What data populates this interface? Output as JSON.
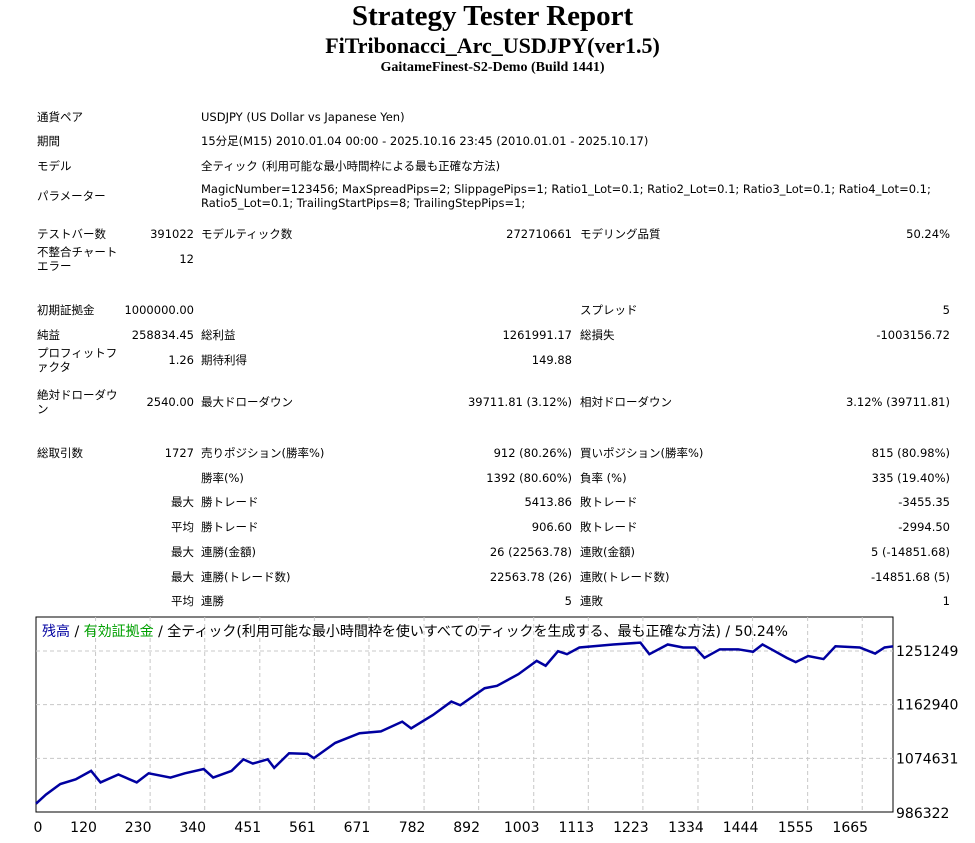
{
  "header": {
    "title": "Strategy Tester Report",
    "expert": "FiTribonacci_Arc_USDJPY(ver1.5)",
    "server": "GaitameFinest-S2-Demo (Build 1441)"
  },
  "info": {
    "symbol_label": "通貨ペア",
    "symbol": "USDJPY (US Dollar vs Japanese Yen)",
    "period_label": "期間",
    "period": "15分足(M15) 2010.01.04 00:00 - 2025.10.16 23:45 (2010.01.01 - 2025.10.17)",
    "model_label": "モデル",
    "model": "全ティック (利用可能な最小時間枠による最も正確な方法)",
    "params_label": "パラメーター",
    "params_line1": "MagicNumber=123456; MaxSpreadPips=2; SlippagePips=1; Ratio1_Lot=0.1; Ratio2_Lot=0.1; Ratio3_Lot=0.1; Ratio4_Lot=0.1;",
    "params_line2": "Ratio5_Lot=0.1; TrailingStartPips=8; TrailingStepPips=1;"
  },
  "stats": [
    {
      "y": 227,
      "c": [
        [
          "テストバー数",
          "391022"
        ],
        [
          "モデルティック数",
          "272710661"
        ],
        [
          "モデリング品質",
          "50.24%"
        ]
      ]
    },
    {
      "y": 252,
      "c": [
        [
          "不整合チャート\nエラー",
          "12"
        ]
      ]
    },
    {
      "y": 303,
      "c": [
        [
          "初期証拠金",
          "1000000.00"
        ],
        [
          "",
          ""
        ],
        [
          "スプレッド",
          "5"
        ]
      ]
    },
    {
      "y": 328,
      "c": [
        [
          "純益",
          "258834.45"
        ],
        [
          "総利益",
          "1261991.17"
        ],
        [
          "総損失",
          "-1003156.72"
        ]
      ]
    },
    {
      "y": 353,
      "c": [
        [
          "プロフィットフ\nァクタ",
          "1.26"
        ],
        [
          "期待利得",
          "149.88"
        ]
      ]
    },
    {
      "y": 395,
      "c": [
        [
          "絶対ドローダウ\nン",
          "2540.00"
        ],
        [
          "最大ドローダウン",
          "39711.81 (3.12%)"
        ],
        [
          "相対ドローダウン",
          "3.12% (39711.81)"
        ]
      ]
    },
    {
      "y": 446,
      "c": [
        [
          "総取引数",
          "1727"
        ],
        [
          "売りポジション(勝率%)",
          "912 (80.26%)"
        ],
        [
          "買いポジション(勝率%)",
          "815 (80.98%)"
        ]
      ]
    },
    {
      "y": 471,
      "c": [
        [
          "",
          ""
        ],
        [
          "勝率(%)",
          "1392 (80.60%)"
        ],
        [
          "負率 (%)",
          "335 (19.40%)"
        ]
      ]
    },
    {
      "y": 495,
      "c": [
        [
          "",
          "最大"
        ],
        [
          "勝トレード",
          "5413.86"
        ],
        [
          "敗トレード",
          "-3455.35"
        ]
      ]
    },
    {
      "y": 520,
      "c": [
        [
          "",
          "平均"
        ],
        [
          "勝トレード",
          "906.60"
        ],
        [
          "敗トレード",
          "-2994.50"
        ]
      ]
    },
    {
      "y": 545,
      "c": [
        [
          "",
          "最大"
        ],
        [
          "連勝(金額)",
          "26 (22563.78)"
        ],
        [
          "連敗(金額)",
          "5 (-14851.68)"
        ]
      ]
    },
    {
      "y": 570,
      "c": [
        [
          "",
          "最大"
        ],
        [
          "連勝(トレード数)",
          "22563.78 (26)"
        ],
        [
          "連敗(トレード数)",
          "-14851.68 (5)"
        ]
      ]
    },
    {
      "y": 594,
      "c": [
        [
          "",
          "平均"
        ],
        [
          "連勝",
          "5"
        ],
        [
          "連敗",
          "1"
        ]
      ]
    }
  ],
  "chart_data": {
    "type": "line",
    "legend": {
      "balance": "残高",
      "sep1": " / ",
      "equity": "有効証拠金",
      "sep2": " / ",
      "model": "全ティック(利用可能な最小時間枠を使いすべてのティックを生成する、最も正確な方法)",
      "sep3": " / ",
      "quality": "50.24%"
    },
    "colors": {
      "balance": "#0000a0",
      "equity": "#00a000",
      "grid": "#c8c8c8"
    },
    "xticks": [
      0,
      120,
      230,
      340,
      451,
      561,
      671,
      782,
      892,
      1003,
      1113,
      1223,
      1334,
      1444,
      1555,
      1665
    ],
    "yticks": [
      986322,
      1074631,
      1162940,
      1251249
    ],
    "xlim": [
      0,
      1727
    ],
    "ylim": [
      986322,
      1278000
    ],
    "series": [
      {
        "name": "残高",
        "x": [
          0,
          20,
          49,
          80,
          111,
          130,
          166,
          203,
          227,
          271,
          300,
          338,
          357,
          394,
          418,
          437,
          467,
          480,
          510,
          547,
          560,
          603,
          652,
          695,
          738,
          756,
          800,
          837,
          855,
          904,
          929,
          972,
          1009,
          1027,
          1052,
          1070,
          1095,
          1163,
          1218,
          1236,
          1273,
          1304,
          1328,
          1347,
          1378,
          1415,
          1445,
          1464,
          1482,
          1513,
          1531,
          1556,
          1587,
          1611,
          1660,
          1691,
          1710,
          1727
        ],
        "y": [
          1000000,
          1015000,
          1032400,
          1040000,
          1054000,
          1035000,
          1048000,
          1035000,
          1050000,
          1043000,
          1050000,
          1057000,
          1043000,
          1054000,
          1073000,
          1066000,
          1073000,
          1059000,
          1083000,
          1082000,
          1075000,
          1100000,
          1116000,
          1119000,
          1135000,
          1124000,
          1146000,
          1168000,
          1162000,
          1190000,
          1194000,
          1213000,
          1235000,
          1227000,
          1251000,
          1246000,
          1257000,
          1262000,
          1265000,
          1246000,
          1262000,
          1257000,
          1257000,
          1240000,
          1254000,
          1254000,
          1250000,
          1262000,
          1254000,
          1240000,
          1233000,
          1243000,
          1238000,
          1259000,
          1257000,
          1247000,
          1257000,
          1258834
        ]
      }
    ]
  }
}
